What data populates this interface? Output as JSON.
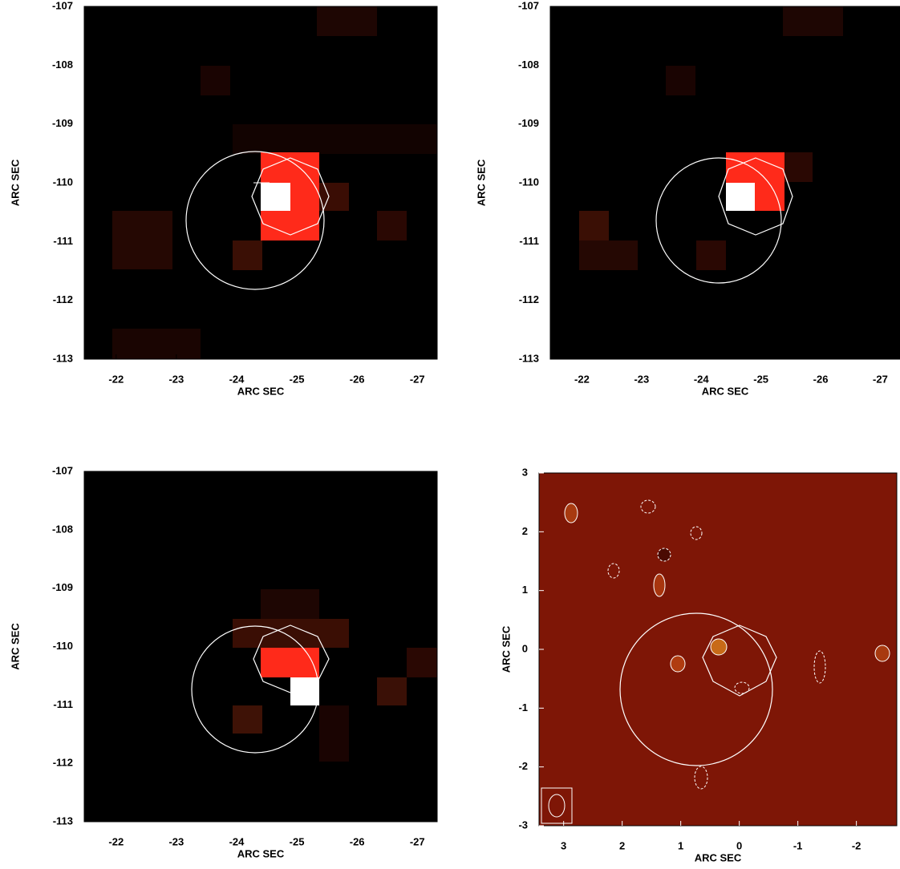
{
  "chart_data": [
    {
      "type": "image",
      "xlabel": "ARC SEC",
      "ylabel": "ARC SEC",
      "xlim": [
        -21.47,
        -27.33
      ],
      "ylim": [
        -113,
        -107
      ],
      "xticks": [
        -22,
        -23,
        -24,
        -25,
        -26,
        -27
      ],
      "yticks": [
        -107,
        -108,
        -109,
        -110,
        -111,
        -112,
        -113
      ]
    },
    {
      "type": "image",
      "xlabel": "ARC SEC",
      "ylabel": "ARC SEC",
      "xlim": [
        -21.47,
        -27.33
      ],
      "ylim": [
        -113,
        -107
      ],
      "xticks": [
        -22,
        -23,
        -24,
        -25,
        -26,
        -27
      ],
      "yticks": [
        -107,
        -108,
        -109,
        -110,
        -111,
        -112,
        -113
      ]
    },
    {
      "type": "image",
      "xlabel": "ARC SEC",
      "ylabel": "ARC SEC",
      "xlim": [
        -21.47,
        -27.33
      ],
      "ylim": [
        -113,
        -107
      ],
      "xticks": [
        -22,
        -23,
        -24,
        -25,
        -26,
        -27
      ],
      "yticks": [
        -107,
        -108,
        -109,
        -110,
        -111,
        -112,
        -113
      ]
    },
    {
      "type": "image",
      "xlabel": "ARC SEC",
      "ylabel": "ARC SEC",
      "xlim": [
        3.42,
        -2.69
      ],
      "ylim": [
        -3,
        3
      ],
      "xticks": [
        3,
        2,
        1,
        0,
        -1,
        -2
      ],
      "yticks": [
        3,
        2,
        1,
        0,
        -1,
        -2,
        -3
      ]
    }
  ]
}
